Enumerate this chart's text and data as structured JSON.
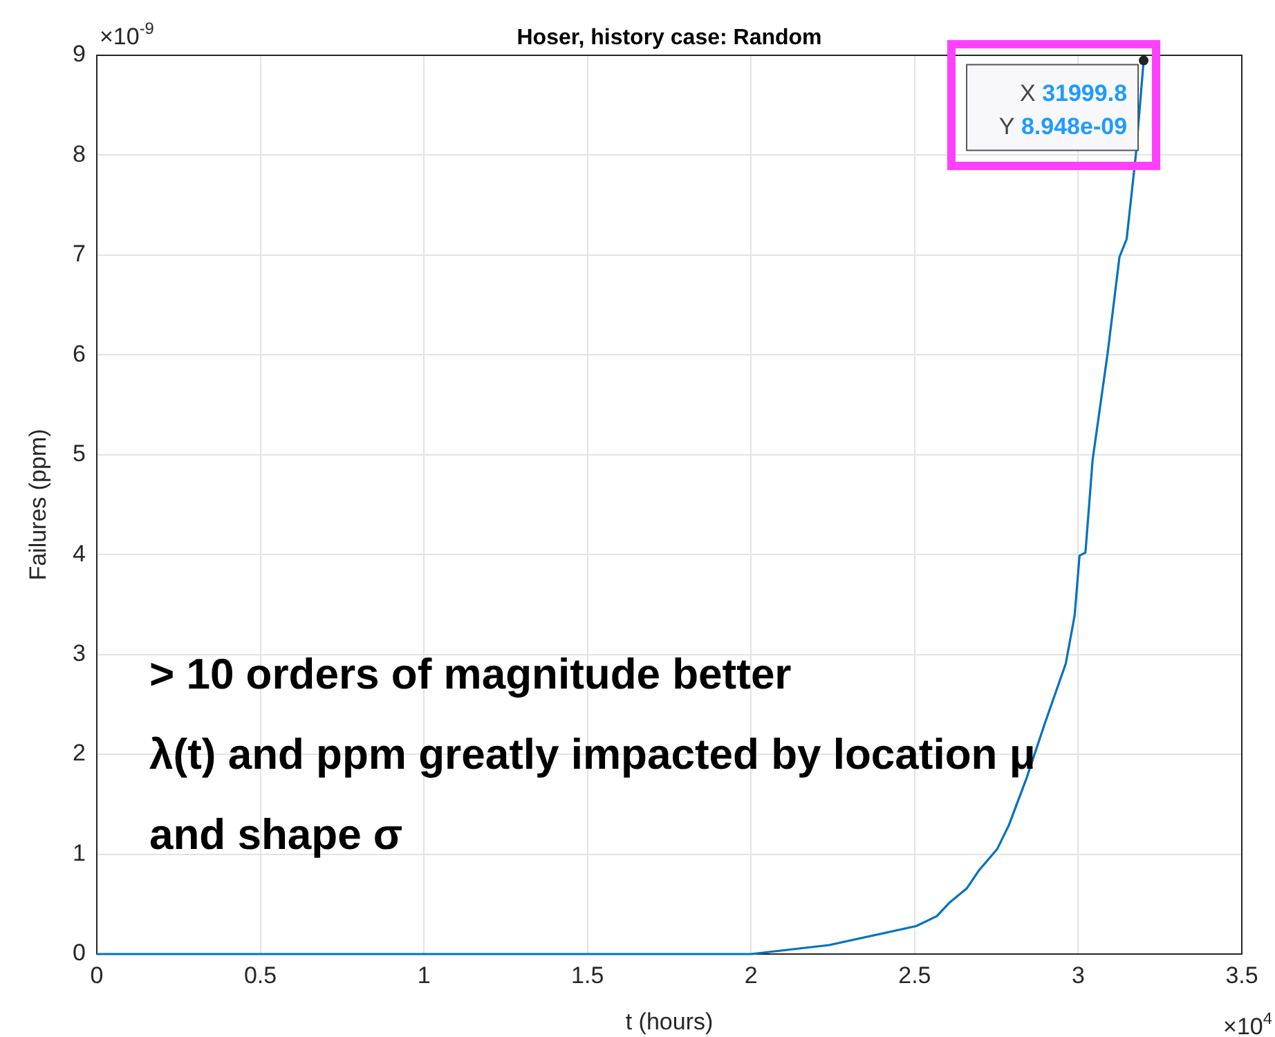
{
  "chart_data": {
    "type": "line",
    "title": "Hoser, history case: Random",
    "xlabel": "t (hours)",
    "ylabel": "Failures (ppm)",
    "x": [
      0,
      1,
      1.8,
      2,
      2.239,
      2.505,
      2.568,
      2.605,
      2.66,
      2.697,
      2.752,
      2.788,
      2.843,
      2.898,
      2.962,
      2.989,
      3.004,
      3.022,
      3.044,
      3.09,
      3.126,
      3.148,
      3.176,
      3.19998
    ],
    "series": [
      {
        "color": "#0072bd",
        "values": [
          0,
          0,
          0,
          0,
          0.09,
          0.28,
          0.38,
          0.51,
          0.66,
          0.84,
          1.05,
          1.29,
          1.77,
          2.31,
          2.91,
          3.39,
          3.99,
          4.02,
          4.95,
          6.02,
          6.98,
          7.16,
          8.0,
          8.948
        ]
      }
    ],
    "xlim": [
      0,
      3.5
    ],
    "ylim": [
      0,
      9
    ],
    "xticks": [
      0,
      0.5,
      1,
      1.5,
      2,
      2.5,
      3,
      3.5
    ],
    "yticks": [
      0,
      1,
      2,
      3,
      4,
      5,
      6,
      7,
      8,
      9
    ],
    "grid": true,
    "marker": "none",
    "line_style": "solid",
    "annotations": [
      "×10$^{-9}$",
      "×10$^{4}$",
      {
        "text": "X 31999.8",
        "x": 3.19998,
        "y": 8.948
      },
      {
        "text": "Y 8.948e-09",
        "x": 3.19998,
        "y": 8.948
      },
      "> 10 orders of magnitude better",
      "λ(t) and ppm greatly impacted by location μ",
      "and shape σ"
    ]
  }
}
